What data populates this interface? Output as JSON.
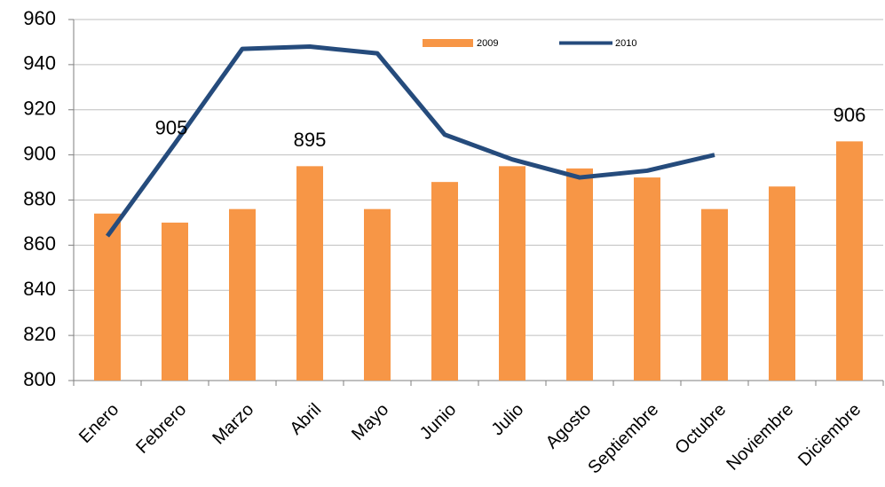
{
  "chart_data": {
    "type": "bar-line",
    "categories": [
      "Enero",
      "Febrero",
      "Marzo",
      "Abril",
      "Mayo",
      "Junio",
      "Julio",
      "Agosto",
      "Septiembre",
      "Octubre",
      "Noviembre",
      "Diciembre"
    ],
    "series": [
      {
        "name": "2009",
        "type": "bar",
        "color": "#f79646",
        "values": [
          874,
          870,
          876,
          895,
          876,
          888,
          895,
          894,
          890,
          876,
          886,
          906
        ],
        "labeled": [
          3,
          11
        ]
      },
      {
        "name": "2010",
        "type": "line",
        "color": "#254b7c",
        "values": [
          864,
          905,
          947,
          948,
          945,
          909,
          898,
          890,
          893,
          900,
          null,
          null
        ],
        "labeled": [
          1
        ]
      }
    ],
    "ylim": [
      800,
      960
    ],
    "yticks": [
      800,
      820,
      840,
      860,
      880,
      900,
      920,
      940,
      960
    ],
    "grid": true,
    "legend": "top"
  }
}
